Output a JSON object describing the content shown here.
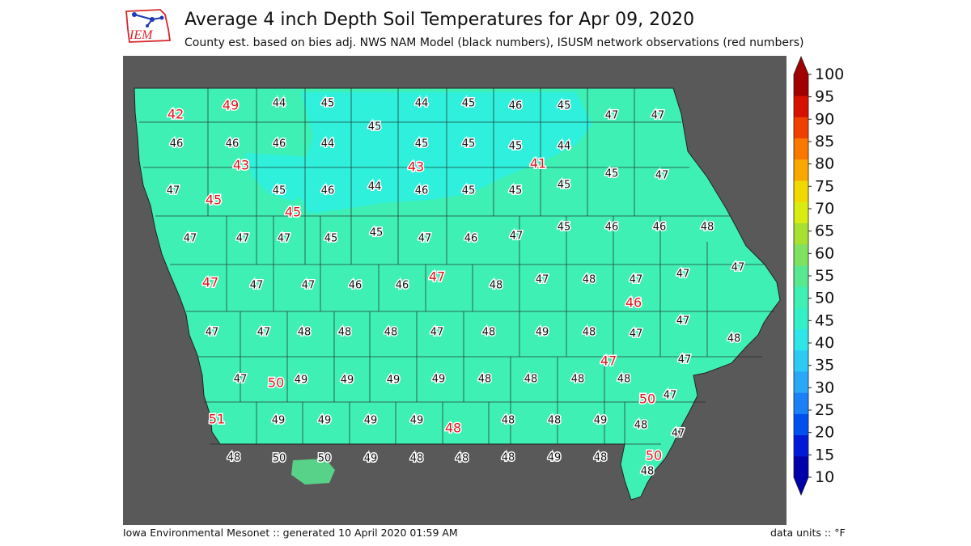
{
  "header": {
    "logo_text": "IEM",
    "title": "Average 4 inch Depth Soil Temperatures for Apr 09, 2020",
    "subtitle": "County est. based on bies adj. NWS NAM Model (black numbers), ISUSM network observations (red numbers)"
  },
  "footer": {
    "left": "Iowa Environmental Mesonet :: generated 10 April 2020 01:59 AM",
    "right": "data units :: °F"
  },
  "colors": {
    "background_panel": "#595959",
    "state_fill": "#3ff0b4",
    "cold_fill": "#2ef0e0",
    "county_line": "#222222",
    "red_numbers": "#e8141c"
  },
  "colorbar": {
    "unit": "°F",
    "levels": [
      10,
      15,
      20,
      25,
      30,
      35,
      40,
      45,
      50,
      55,
      60,
      65,
      70,
      75,
      80,
      85,
      90,
      95,
      100
    ],
    "tick_labels": [
      "10",
      "15",
      "20",
      "25",
      "30",
      "35",
      "40",
      "45",
      "50",
      "55",
      "60",
      "65",
      "70",
      "75",
      "80",
      "85",
      "90",
      "95",
      "100"
    ],
    "colors": [
      "#0000aa",
      "#0018d8",
      "#0050f0",
      "#1a80f5",
      "#2aa8f7",
      "#2ccaf5",
      "#2ee6e8",
      "#33f0c6",
      "#3ff0b4",
      "#58e890",
      "#80e060",
      "#a8e030",
      "#d8ec10",
      "#f0d800",
      "#f8a800",
      "#f87800",
      "#f04000",
      "#d81000",
      "#a00000"
    ]
  },
  "chart_data": {
    "type": "map",
    "region": "Iowa counties",
    "units": "°F",
    "county_estimates_black": [
      {
        "row": 1,
        "values": [
          44,
          45,
          44,
          45,
          46,
          45,
          47,
          47
        ]
      },
      {
        "row": 2,
        "values": [
          46,
          46,
          46,
          44,
          45,
          45,
          45,
          45,
          44,
          45,
          47
        ]
      },
      {
        "row": 3,
        "values": [
          47,
          45,
          46,
          44,
          46,
          45,
          45,
          45
        ]
      },
      {
        "row": 4,
        "values": [
          47,
          47,
          47,
          45,
          45,
          47,
          46,
          47,
          45,
          46,
          46,
          48
        ]
      },
      {
        "row": 5,
        "values": [
          47,
          47,
          46,
          46,
          48,
          47,
          48,
          47,
          47,
          47
        ]
      },
      {
        "row": 6,
        "values": [
          47,
          47,
          48,
          48,
          48,
          47,
          48,
          49,
          48,
          47,
          47,
          48
        ]
      },
      {
        "row": 7,
        "values": [
          47,
          49,
          49,
          49,
          49,
          48,
          48,
          48,
          48,
          47,
          47
        ]
      },
      {
        "row": 8,
        "values": [
          49,
          49,
          49,
          49,
          48,
          48,
          49,
          48,
          47
        ]
      },
      {
        "row": 9,
        "values": [
          48,
          50,
          50,
          49,
          48,
          48,
          48,
          49,
          48,
          48
        ]
      }
    ],
    "station_observations_red": [
      42,
      49,
      43,
      43,
      41,
      45,
      45,
      47,
      47,
      46,
      47,
      50,
      50,
      51,
      48,
      50
    ]
  }
}
